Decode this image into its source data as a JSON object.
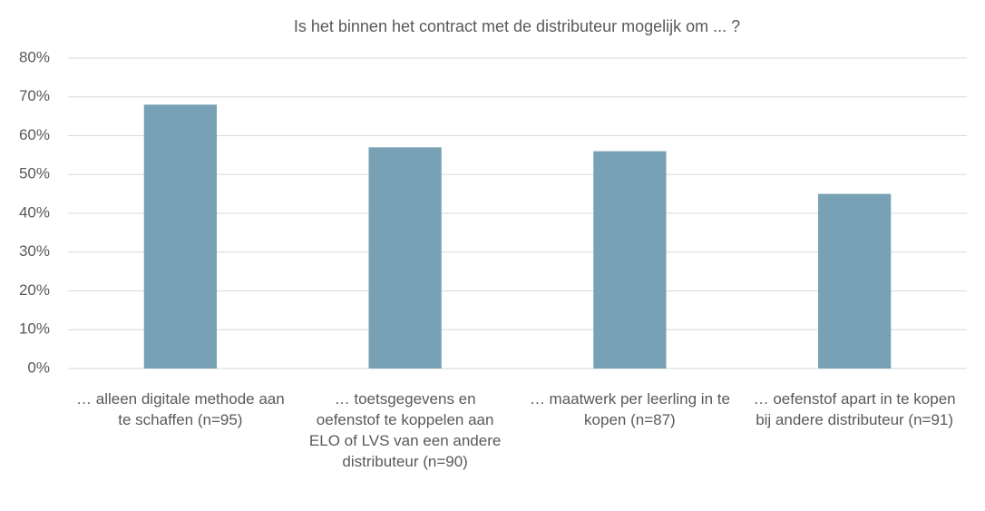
{
  "chart_data": {
    "type": "bar",
    "title": "Is het binnen het contract met de distributeur mogelijk om ... ?",
    "categories": [
      "… alleen digitale methode aan te schaffen (n=95)",
      "… toetsgegevens en oefenstof te koppelen aan ELO of LVS van een andere distributeur (n=90)",
      "… maatwerk per leerling in te kopen (n=87)",
      "… oefenstof apart in te kopen bij andere distributeur (n=91)"
    ],
    "values": [
      68,
      57,
      56,
      45
    ],
    "color": "#78a1b5",
    "ylim": [
      0,
      80
    ],
    "yticks": [
      {
        "value": 0,
        "label": "0%"
      },
      {
        "value": 10,
        "label": "10%"
      },
      {
        "value": 20,
        "label": "20%"
      },
      {
        "value": 30,
        "label": "30%"
      },
      {
        "value": 40,
        "label": "40%"
      },
      {
        "value": 50,
        "label": "50%"
      },
      {
        "value": 60,
        "label": "60%"
      },
      {
        "value": 70,
        "label": "70%"
      },
      {
        "value": 80,
        "label": "80%"
      }
    ],
    "grid": true
  }
}
